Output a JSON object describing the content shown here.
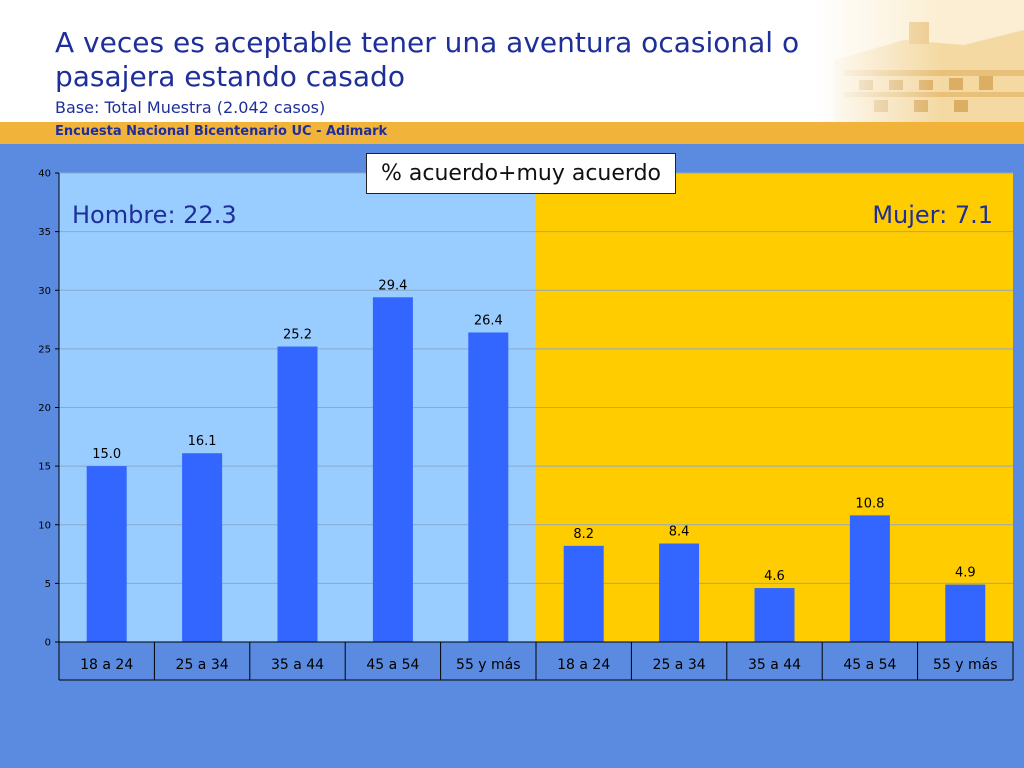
{
  "header": {
    "title": "A veces es aceptable tener una aventura ocasional o pasajera estando casado",
    "base": "Base: Total Muestra (2.042 casos)",
    "survey": "Encuesta Nacional Bicentenario UC - Adimark"
  },
  "box_label": "% acuerdo+muy acuerdo",
  "colors": {
    "bar": "#3366ff",
    "men_panel": "#99ccff",
    "women_panel": "#ffcc00",
    "background": "#5b8be0",
    "title": "#1e2f9a",
    "band": "#f2b33b"
  },
  "chart_data": {
    "type": "bar",
    "categories": [
      "18 a 24",
      "25 a 34",
      "35 a 44",
      "45 a 54",
      "55 y más",
      "18 a 24",
      "25 a 34",
      "35 a 44",
      "45 a 54",
      "55 y más"
    ],
    "values": [
      15.0,
      16.1,
      25.2,
      29.4,
      26.4,
      8.2,
      8.4,
      4.6,
      10.8,
      4.9
    ],
    "data_labels": [
      "15.0",
      "16.1",
      "25.2",
      "29.4",
      "26.4",
      "8.2",
      "8.4",
      "4.6",
      "10.8",
      "4.9"
    ],
    "ylim": [
      0,
      40
    ],
    "yticks": [
      0,
      5,
      10,
      15,
      20,
      25,
      30,
      35,
      40
    ],
    "grid": true,
    "groups": [
      {
        "label": "Hombre: 22.3",
        "categories": [
          0,
          1,
          2,
          3,
          4
        ],
        "color": "#99ccff"
      },
      {
        "label": "Mujer: 7.1",
        "categories": [
          5,
          6,
          7,
          8,
          9
        ],
        "color": "#ffcc00"
      }
    ]
  }
}
